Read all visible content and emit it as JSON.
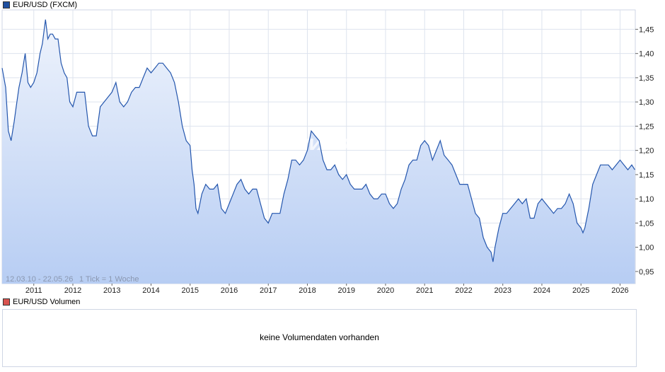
{
  "legend": {
    "price_label": "EUR/USD (FXCM)",
    "volume_label": "EUR/USD Volumen"
  },
  "info": {
    "date_range": "12.03.10 - 22.05.26",
    "tick_info": "1 Tick = 1 Woche"
  },
  "watermark": "ARIVA.DE",
  "volume": {
    "message": "keine Volumendaten vorhanden"
  },
  "colors": {
    "line": "#2456ad",
    "area_top": "#eef3fc",
    "area_bottom": "#b7cdf3",
    "grid": "#dde3ee",
    "price_swatch": "#1f4f9f",
    "volume_swatch": "#d9534f"
  },
  "chart_data": {
    "type": "area",
    "series": [
      {
        "name": "EUR/USD (FXCM)",
        "x": [
          2010.19,
          2010.28,
          2010.35,
          2010.42,
          2010.5,
          2010.55,
          2010.62,
          2010.7,
          2010.78,
          2010.85,
          2010.92,
          2011.0,
          2011.08,
          2011.16,
          2011.22,
          2011.3,
          2011.36,
          2011.42,
          2011.48,
          2011.55,
          2011.62,
          2011.7,
          2011.78,
          2011.85,
          2011.92,
          2012.0,
          2012.1,
          2012.2,
          2012.3,
          2012.4,
          2012.5,
          2012.6,
          2012.7,
          2012.8,
          2012.9,
          2013.0,
          2013.1,
          2013.2,
          2013.3,
          2013.4,
          2013.5,
          2013.6,
          2013.7,
          2013.8,
          2013.9,
          2014.0,
          2014.1,
          2014.2,
          2014.3,
          2014.4,
          2014.5,
          2014.6,
          2014.7,
          2014.8,
          2014.9,
          2015.0,
          2015.05,
          2015.1,
          2015.15,
          2015.2,
          2015.3,
          2015.4,
          2015.5,
          2015.6,
          2015.7,
          2015.8,
          2015.9,
          2016.0,
          2016.1,
          2016.2,
          2016.3,
          2016.4,
          2016.5,
          2016.6,
          2016.7,
          2016.8,
          2016.9,
          2017.0,
          2017.1,
          2017.2,
          2017.3,
          2017.4,
          2017.5,
          2017.6,
          2017.7,
          2017.8,
          2017.9,
          2018.0,
          2018.1,
          2018.2,
          2018.3,
          2018.4,
          2018.5,
          2018.6,
          2018.7,
          2018.8,
          2018.9,
          2019.0,
          2019.1,
          2019.2,
          2019.3,
          2019.4,
          2019.5,
          2019.6,
          2019.7,
          2019.8,
          2019.9,
          2020.0,
          2020.1,
          2020.2,
          2020.3,
          2020.4,
          2020.5,
          2020.6,
          2020.7,
          2020.8,
          2020.9,
          2021.0,
          2021.1,
          2021.2,
          2021.3,
          2021.4,
          2021.5,
          2021.6,
          2021.7,
          2021.8,
          2021.9,
          2022.0,
          2022.1,
          2022.2,
          2022.3,
          2022.4,
          2022.5,
          2022.6,
          2022.7,
          2022.75,
          2022.8,
          2022.9,
          2023.0,
          2023.1,
          2023.2,
          2023.3,
          2023.4,
          2023.5,
          2023.6,
          2023.7,
          2023.8,
          2023.9,
          2024.0,
          2024.1,
          2024.2,
          2024.3,
          2024.4,
          2024.5,
          2024.6,
          2024.7,
          2024.8,
          2024.9,
          2025.0,
          2025.05,
          2025.1,
          2025.2,
          2025.3,
          2025.4,
          2025.5,
          2025.6,
          2025.7,
          2025.8,
          2025.9,
          2026.0,
          2026.1,
          2026.2,
          2026.3,
          2026.38
        ],
        "values": [
          1.37,
          1.33,
          1.24,
          1.22,
          1.26,
          1.29,
          1.33,
          1.36,
          1.4,
          1.34,
          1.33,
          1.34,
          1.36,
          1.4,
          1.42,
          1.47,
          1.43,
          1.44,
          1.44,
          1.43,
          1.43,
          1.38,
          1.36,
          1.35,
          1.3,
          1.29,
          1.32,
          1.32,
          1.32,
          1.25,
          1.23,
          1.23,
          1.29,
          1.3,
          1.31,
          1.32,
          1.34,
          1.3,
          1.29,
          1.3,
          1.32,
          1.33,
          1.33,
          1.35,
          1.37,
          1.36,
          1.37,
          1.38,
          1.38,
          1.37,
          1.36,
          1.34,
          1.3,
          1.25,
          1.22,
          1.21,
          1.16,
          1.13,
          1.08,
          1.07,
          1.11,
          1.13,
          1.12,
          1.12,
          1.13,
          1.08,
          1.07,
          1.09,
          1.11,
          1.13,
          1.14,
          1.12,
          1.11,
          1.12,
          1.12,
          1.09,
          1.06,
          1.05,
          1.07,
          1.07,
          1.07,
          1.11,
          1.14,
          1.18,
          1.18,
          1.17,
          1.18,
          1.2,
          1.24,
          1.23,
          1.22,
          1.18,
          1.16,
          1.16,
          1.17,
          1.15,
          1.14,
          1.15,
          1.13,
          1.12,
          1.12,
          1.12,
          1.13,
          1.11,
          1.1,
          1.1,
          1.11,
          1.11,
          1.09,
          1.08,
          1.09,
          1.12,
          1.14,
          1.17,
          1.18,
          1.18,
          1.21,
          1.22,
          1.21,
          1.18,
          1.2,
          1.22,
          1.19,
          1.18,
          1.17,
          1.15,
          1.13,
          1.13,
          1.13,
          1.1,
          1.07,
          1.06,
          1.02,
          1.0,
          0.99,
          0.97,
          1.0,
          1.04,
          1.07,
          1.07,
          1.08,
          1.09,
          1.1,
          1.09,
          1.1,
          1.06,
          1.06,
          1.09,
          1.1,
          1.09,
          1.08,
          1.07,
          1.08,
          1.08,
          1.09,
          1.11,
          1.09,
          1.05,
          1.04,
          1.03,
          1.04,
          1.08,
          1.13,
          1.15,
          1.17,
          1.17,
          1.17,
          1.16,
          1.17,
          1.18,
          1.17,
          1.16,
          1.17,
          1.16
        ]
      }
    ],
    "x_ticks": [
      "2011",
      "2012",
      "2013",
      "2014",
      "2015",
      "2016",
      "2017",
      "2018",
      "2019",
      "2020",
      "2021",
      "2022",
      "2023",
      "2024",
      "2025",
      "2026"
    ],
    "y_ticks": [
      "1,45",
      "1,40",
      "1,35",
      "1,30",
      "1,25",
      "1,20",
      "1,15",
      "1,10",
      "1,05",
      "1,00",
      "0,95"
    ],
    "ylim": [
      0.925,
      1.49
    ],
    "xlim": [
      2010.19,
      2026.39
    ],
    "grid": true,
    "title": "",
    "xlabel": "",
    "ylabel": ""
  }
}
